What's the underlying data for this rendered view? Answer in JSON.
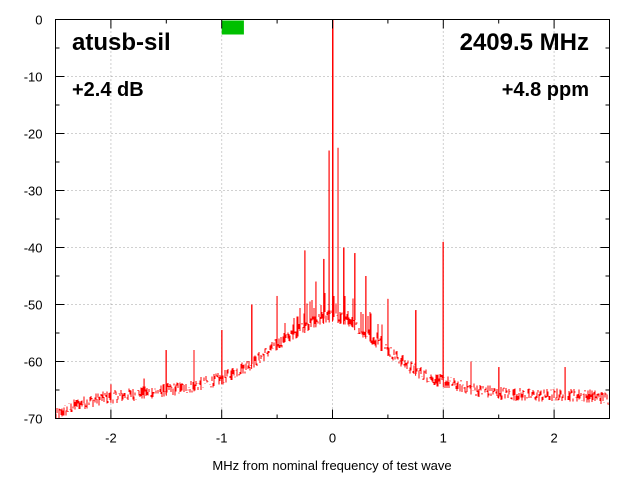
{
  "chart_data": {
    "type": "line",
    "title": "atusb-sil",
    "frequency_label": "2409.5 MHz",
    "gain_label": "+2.4 dB",
    "offset_label": "+4.8 ppm",
    "xlabel": "MHz from nominal frequency of test wave",
    "ylabel": "",
    "xlim": [
      -2.5,
      2.5
    ],
    "ylim": [
      -70,
      0
    ],
    "x_ticks": [
      -2,
      -1,
      0,
      1,
      2
    ],
    "x_tick_labels": [
      "-2",
      "-1",
      "0",
      "1",
      "2"
    ],
    "y_ticks": [
      0,
      -10,
      -20,
      -30,
      -40,
      -50,
      -60,
      -70
    ],
    "y_tick_labels": [
      "0",
      "-10",
      "-20",
      "-30",
      "-40",
      "-50",
      "-60",
      "-70"
    ],
    "grid": true,
    "line_color": "#ff0000",
    "status_indicator_color": "#00c000",
    "status_indicator_x_range": [
      -1.0,
      -0.8
    ],
    "series": [
      {
        "values": {
          "x": [
            -2.5,
            -2.3,
            -2.1,
            -1.9,
            -1.7,
            -1.5,
            -1.3,
            -1.1,
            -1.0,
            -0.9,
            -0.8,
            -0.7,
            -0.6,
            -0.5,
            -0.4,
            -0.3,
            -0.2,
            -0.1,
            0.0,
            0.1,
            0.2,
            0.3,
            0.4,
            0.5,
            0.6,
            0.7,
            0.8,
            0.9,
            1.0,
            1.1,
            1.2,
            1.3,
            1.5,
            1.7,
            1.9,
            2.1,
            2.3,
            2.5
          ],
          "y": [
            -69.5,
            -67.5,
            -66.5,
            -66,
            -65.5,
            -65,
            -64.5,
            -63.5,
            -63,
            -62,
            -61,
            -60,
            -58.5,
            -57,
            -55.5,
            -54.5,
            -53.5,
            -52.5,
            -52,
            -52.5,
            -53.5,
            -55,
            -56.5,
            -58,
            -59.5,
            -61,
            -62,
            -63,
            -63.5,
            -64,
            -64.5,
            -65,
            -65.5,
            -65.8,
            -66,
            -65.8,
            -66,
            -66.5
          ]
        },
        "spurs": {
          "x": [
            -2.0,
            -1.7,
            -1.5,
            -1.25,
            -1.0,
            -0.73,
            -0.5,
            -0.25,
            -0.15,
            -0.08,
            -0.03,
            0.0,
            0.05,
            0.1,
            0.2,
            0.3,
            0.5,
            0.75,
            1.0,
            1.25,
            1.5,
            2.1
          ],
          "y": [
            -64,
            -63,
            -58,
            -58,
            -54.5,
            -50,
            -48.5,
            -40.5,
            -46,
            -42,
            -23,
            0,
            -22.5,
            -40,
            -41,
            -45,
            -49,
            -51,
            -39,
            -60,
            -61,
            -61
          ]
        }
      }
    ]
  }
}
